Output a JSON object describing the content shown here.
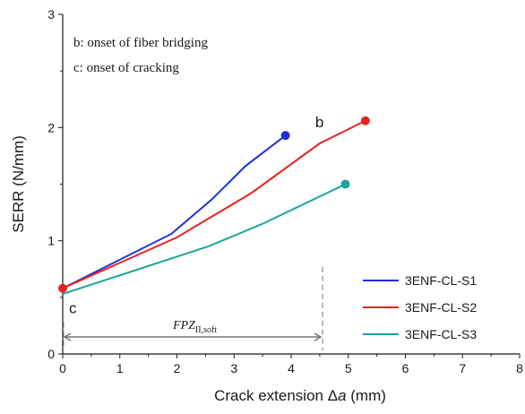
{
  "chart_data": {
    "type": "line",
    "xlabel_prefix": "Crack extension Δ",
    "xlabel_var": "a",
    "xlabel_suffix": " (mm)",
    "ylabel": "SERR (N/mm)",
    "xlim": [
      0,
      8
    ],
    "ylim": [
      0,
      3
    ],
    "xticks": [
      "0",
      "1",
      "2",
      "3",
      "4",
      "5",
      "6",
      "7",
      "8"
    ],
    "yticks": [
      "0",
      "1",
      "2",
      "3"
    ],
    "legend_position": "bottom-right",
    "series": [
      {
        "name": "3ENF-CL-S1",
        "color": "#1f2fd6",
        "points": [
          [
            0,
            0.58
          ],
          [
            1.9,
            1.06
          ],
          [
            2.6,
            1.36
          ],
          [
            3.2,
            1.66
          ],
          [
            3.9,
            1.93
          ]
        ]
      },
      {
        "name": "3ENF-CL-S2",
        "color": "#e8231f",
        "points": [
          [
            0,
            0.58
          ],
          [
            2.0,
            1.03
          ],
          [
            3.3,
            1.42
          ],
          [
            4.5,
            1.86
          ],
          [
            5.3,
            2.06
          ]
        ]
      },
      {
        "name": "3ENF-CL-S3",
        "color": "#1aa69a",
        "points": [
          [
            0,
            0.53
          ],
          [
            2.55,
            0.95
          ],
          [
            3.5,
            1.15
          ],
          [
            4.95,
            1.5
          ]
        ]
      }
    ],
    "annotations": {
      "notes": [
        "b: onset of fiber bridging",
        "c: onset of cracking"
      ],
      "point_b": {
        "text": "b",
        "x": 4.5,
        "y": 1.86
      },
      "point_c": {
        "text": "c",
        "x": 0,
        "y": 0.58
      },
      "fpz": {
        "main": "FPZ",
        "sub": "II,soft",
        "x_start": 0,
        "x_end": 4.55,
        "y": 0.15
      }
    }
  }
}
